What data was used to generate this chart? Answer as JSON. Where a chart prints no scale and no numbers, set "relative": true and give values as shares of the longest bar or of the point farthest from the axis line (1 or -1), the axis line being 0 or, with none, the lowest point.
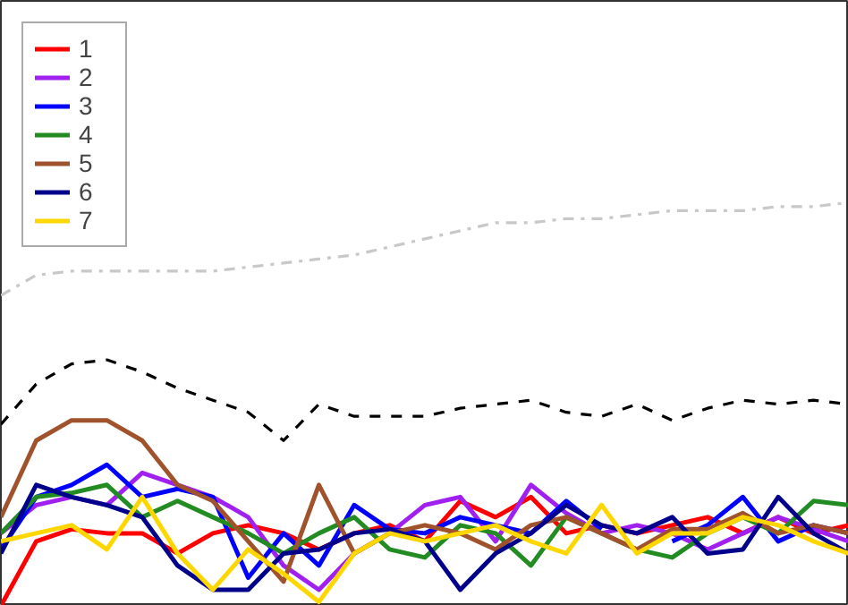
{
  "chart_data": {
    "type": "line",
    "relative": true,
    "legend": "top left",
    "grid": false,
    "categories": [
      null,
      null,
      null,
      null,
      null,
      null,
      null,
      null,
      null,
      null,
      null,
      null,
      null,
      null,
      null,
      null,
      null,
      null,
      null,
      null,
      null,
      null,
      null,
      null,
      null
    ],
    "series": [
      {
        "name": "1",
        "color": "#ff0000",
        "values": [
          0,
          0.16,
          0.19,
          0.18,
          0.18,
          0.13,
          0.18,
          0.2,
          0.18,
          0.14,
          0.18,
          0.2,
          0.16,
          0.26,
          0.22,
          0.27,
          0.18,
          0.2,
          0.18,
          0.2,
          0.22,
          0.18,
          0.22,
          0.18,
          0.2
        ]
      },
      {
        "name": "2",
        "color": "#a020f0",
        "values": [
          0.18,
          0.25,
          0.27,
          0.25,
          0.33,
          0.3,
          0.27,
          0.22,
          0.1,
          0.04,
          0.13,
          0.18,
          0.25,
          0.27,
          0.16,
          0.3,
          0.23,
          0.18,
          0.2,
          0.18,
          0.14,
          0.18,
          0.22,
          0.19,
          0.16
        ]
      },
      {
        "name": "3",
        "color": "#0000ff",
        "values": [
          0.14,
          0.27,
          0.3,
          0.35,
          0.27,
          0.29,
          0.27,
          0.07,
          0.18,
          0.1,
          0.25,
          0.19,
          0.18,
          0.22,
          0.2,
          0.18,
          0.26,
          0.19,
          null,
          0.16,
          0.2,
          0.27,
          0.16,
          0.2,
          0.18
        ]
      },
      {
        "name": "4",
        "color": "#228b22",
        "values": [
          0.18,
          0.27,
          0.28,
          0.3,
          0.22,
          0.26,
          0.22,
          0.18,
          0.13,
          0.18,
          0.22,
          0.14,
          0.12,
          0.2,
          0.18,
          0.1,
          0.22,
          0.18,
          0.14,
          0.12,
          0.18,
          0.22,
          0.18,
          0.26,
          0.25
        ]
      },
      {
        "name": "5",
        "color": "#a0522d",
        "values": [
          0.22,
          0.41,
          0.46,
          0.46,
          0.41,
          0.3,
          0.26,
          0.16,
          0.06,
          0.3,
          0.13,
          0.18,
          0.2,
          0.18,
          0.14,
          0.2,
          0.22,
          0.18,
          0.14,
          0.19,
          0.19,
          0.23,
          0.18,
          0.2,
          0.18
        ]
      },
      {
        "name": "6",
        "color": "#00008b",
        "values": [
          0.13,
          0.3,
          0.27,
          0.25,
          0.22,
          0.1,
          0.04,
          0.04,
          0.13,
          0.14,
          0.18,
          0.19,
          0.16,
          0.04,
          0.13,
          0.18,
          0.25,
          0.2,
          0.18,
          0.22,
          0.13,
          0.14,
          0.27,
          0.18,
          0.13
        ]
      },
      {
        "name": "7",
        "color": "#ffd700",
        "values": [
          0.16,
          0.18,
          0.2,
          0.14,
          0.27,
          0.13,
          0.04,
          0.14,
          0.08,
          0.01,
          0.13,
          0.18,
          0.16,
          0.18,
          0.2,
          0.16,
          0.13,
          0.25,
          0.13,
          0.18,
          0.18,
          0.22,
          0.2,
          0.16,
          0.13
        ]
      },
      {
        "color": "#000000",
        "line_style": "dashed",
        "values": [
          0.45,
          0.55,
          0.6,
          0.61,
          0.58,
          0.54,
          0.51,
          0.48,
          0.41,
          0.5,
          0.47,
          0.47,
          0.47,
          0.49,
          0.5,
          0.51,
          0.48,
          0.47,
          0.5,
          0.46,
          0.49,
          0.51,
          0.5,
          0.51,
          0.5
        ]
      },
      {
        "color": "#c8c8c8",
        "line_style": "dashdot",
        "values": [
          0.77,
          0.82,
          0.83,
          0.83,
          0.83,
          0.83,
          0.83,
          0.84,
          0.85,
          0.86,
          0.87,
          0.89,
          0.91,
          0.93,
          0.95,
          0.95,
          0.96,
          0.96,
          0.97,
          0.98,
          0.98,
          0.98,
          0.99,
          0.99,
          1.0
        ]
      }
    ]
  }
}
